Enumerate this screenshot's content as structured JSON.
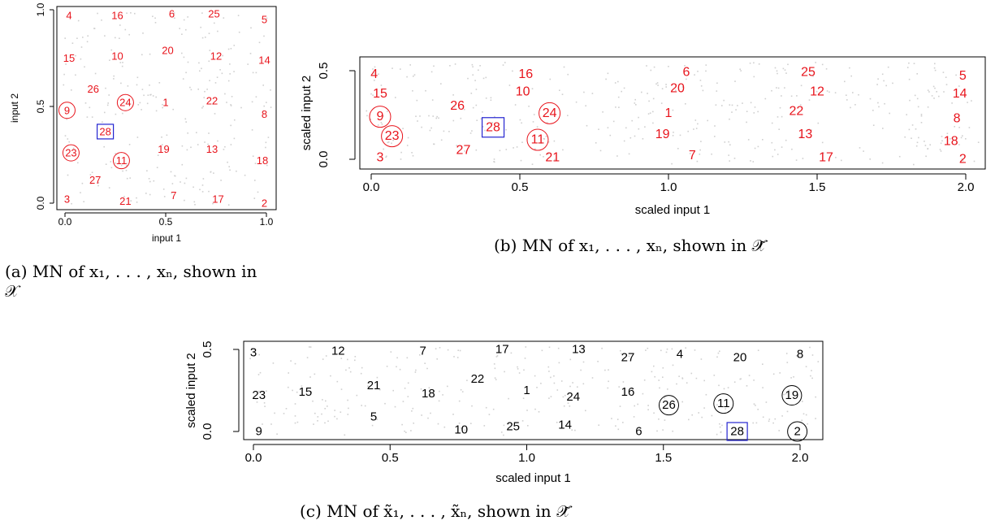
{
  "captions": {
    "a_line1": "(a) MN of x₁, . . . , xₙ, shown in",
    "a_line2": "𝒳",
    "b": "(b) MN of x₁, . . . , xₙ, shown in 𝒳̃",
    "c": "(c) MN of x̃₁, . . . , x̃ₙ, shown in 𝒳̃"
  },
  "colors": {
    "red": "#e8141c",
    "black": "#000000",
    "blue": "#2424d0",
    "grey_points": "#cfcfcf"
  },
  "chart_data": [
    {
      "id": "a",
      "type": "scatter",
      "xlabel": "input 1",
      "ylabel": "input 2",
      "xlim": [
        0,
        1
      ],
      "ylim": [
        0,
        1
      ],
      "xticks": [
        "0.0",
        "0.5",
        "1.0"
      ],
      "yticks": [
        "0.0",
        "0.5",
        "1.0"
      ],
      "label_color": "red",
      "points": [
        {
          "label": "4",
          "x": 0.02,
          "y": 0.97
        },
        {
          "label": "16",
          "x": 0.26,
          "y": 0.97
        },
        {
          "label": "6",
          "x": 0.53,
          "y": 0.98
        },
        {
          "label": "25",
          "x": 0.74,
          "y": 0.98
        },
        {
          "label": "5",
          "x": 0.99,
          "y": 0.95
        },
        {
          "label": "15",
          "x": 0.02,
          "y": 0.75
        },
        {
          "label": "10",
          "x": 0.26,
          "y": 0.76
        },
        {
          "label": "20",
          "x": 0.51,
          "y": 0.79
        },
        {
          "label": "12",
          "x": 0.75,
          "y": 0.76
        },
        {
          "label": "14",
          "x": 0.99,
          "y": 0.74
        },
        {
          "label": "26",
          "x": 0.14,
          "y": 0.59
        },
        {
          "label": "9",
          "x": 0.01,
          "y": 0.48,
          "circled": true
        },
        {
          "label": "24",
          "x": 0.3,
          "y": 0.52,
          "circled": true
        },
        {
          "label": "1",
          "x": 0.5,
          "y": 0.52
        },
        {
          "label": "22",
          "x": 0.73,
          "y": 0.53
        },
        {
          "label": "8",
          "x": 0.99,
          "y": 0.46
        },
        {
          "label": "28",
          "x": 0.2,
          "y": 0.37,
          "boxed": true
        },
        {
          "label": "23",
          "x": 0.03,
          "y": 0.26,
          "circled": true
        },
        {
          "label": "11",
          "x": 0.28,
          "y": 0.22,
          "circled": true
        },
        {
          "label": "19",
          "x": 0.49,
          "y": 0.28
        },
        {
          "label": "13",
          "x": 0.73,
          "y": 0.28
        },
        {
          "label": "18",
          "x": 0.98,
          "y": 0.22
        },
        {
          "label": "27",
          "x": 0.15,
          "y": 0.12
        },
        {
          "label": "3",
          "x": 0.01,
          "y": 0.02
        },
        {
          "label": "21",
          "x": 0.3,
          "y": 0.01
        },
        {
          "label": "7",
          "x": 0.54,
          "y": 0.04
        },
        {
          "label": "17",
          "x": 0.76,
          "y": 0.02
        },
        {
          "label": "2",
          "x": 0.99,
          "y": 0.0
        }
      ]
    },
    {
      "id": "b",
      "type": "scatter",
      "xlabel": "scaled input 1",
      "ylabel": "scaled input 2",
      "xlim": [
        0,
        2
      ],
      "ylim": [
        0,
        0.5
      ],
      "xticks": [
        "0.0",
        "0.5",
        "1.0",
        "1.5",
        "2.0"
      ],
      "yticks": [
        "0.0",
        "0.5"
      ],
      "label_color": "red",
      "points": [
        {
          "label": "4",
          "x": 0.01,
          "y": 0.48
        },
        {
          "label": "16",
          "x": 0.52,
          "y": 0.48
        },
        {
          "label": "6",
          "x": 1.06,
          "y": 0.49
        },
        {
          "label": "25",
          "x": 1.47,
          "y": 0.49
        },
        {
          "label": "5",
          "x": 1.99,
          "y": 0.47
        },
        {
          "label": "15",
          "x": 0.03,
          "y": 0.37
        },
        {
          "label": "10",
          "x": 0.51,
          "y": 0.38
        },
        {
          "label": "20",
          "x": 1.03,
          "y": 0.4
        },
        {
          "label": "12",
          "x": 1.5,
          "y": 0.38
        },
        {
          "label": "14",
          "x": 1.98,
          "y": 0.37
        },
        {
          "label": "26",
          "x": 0.29,
          "y": 0.3
        },
        {
          "label": "9",
          "x": 0.03,
          "y": 0.24,
          "circled": true
        },
        {
          "label": "24",
          "x": 0.6,
          "y": 0.26,
          "circled": true
        },
        {
          "label": "1",
          "x": 1.0,
          "y": 0.26
        },
        {
          "label": "22",
          "x": 1.43,
          "y": 0.27
        },
        {
          "label": "8",
          "x": 1.97,
          "y": 0.23
        },
        {
          "label": "28",
          "x": 0.41,
          "y": 0.18,
          "boxed": true
        },
        {
          "label": "23",
          "x": 0.07,
          "y": 0.13,
          "circled": true
        },
        {
          "label": "11",
          "x": 0.56,
          "y": 0.11,
          "circled": true
        },
        {
          "label": "19",
          "x": 0.98,
          "y": 0.14
        },
        {
          "label": "13",
          "x": 1.46,
          "y": 0.14
        },
        {
          "label": "18",
          "x": 1.95,
          "y": 0.1
        },
        {
          "label": "27",
          "x": 0.31,
          "y": 0.05
        },
        {
          "label": "3",
          "x": 0.03,
          "y": 0.01
        },
        {
          "label": "21",
          "x": 0.61,
          "y": 0.01
        },
        {
          "label": "7",
          "x": 1.08,
          "y": 0.02
        },
        {
          "label": "17",
          "x": 1.53,
          "y": 0.01
        },
        {
          "label": "2",
          "x": 1.99,
          "y": 0.0
        }
      ]
    },
    {
      "id": "c",
      "type": "scatter",
      "xlabel": "scaled input 1",
      "ylabel": "scaled input 2",
      "xlim": [
        0,
        2
      ],
      "ylim": [
        0,
        0.5
      ],
      "xticks": [
        "0.0",
        "0.5",
        "1.0",
        "1.5",
        "2.0"
      ],
      "yticks": [
        "0.0",
        "0.5"
      ],
      "label_color": "black",
      "points": [
        {
          "label": "3",
          "x": 0.0,
          "y": 0.48
        },
        {
          "label": "12",
          "x": 0.31,
          "y": 0.49
        },
        {
          "label": "7",
          "x": 0.62,
          "y": 0.49
        },
        {
          "label": "17",
          "x": 0.91,
          "y": 0.5
        },
        {
          "label": "13",
          "x": 1.19,
          "y": 0.5
        },
        {
          "label": "27",
          "x": 1.37,
          "y": 0.45
        },
        {
          "label": "4",
          "x": 1.56,
          "y": 0.47
        },
        {
          "label": "20",
          "x": 1.78,
          "y": 0.45
        },
        {
          "label": "8",
          "x": 2.0,
          "y": 0.47
        },
        {
          "label": "23",
          "x": 0.02,
          "y": 0.22
        },
        {
          "label": "15",
          "x": 0.19,
          "y": 0.24
        },
        {
          "label": "21",
          "x": 0.44,
          "y": 0.28
        },
        {
          "label": "18",
          "x": 0.64,
          "y": 0.23
        },
        {
          "label": "22",
          "x": 0.82,
          "y": 0.32
        },
        {
          "label": "1",
          "x": 1.0,
          "y": 0.25
        },
        {
          "label": "24",
          "x": 1.17,
          "y": 0.21
        },
        {
          "label": "16",
          "x": 1.37,
          "y": 0.24
        },
        {
          "label": "26",
          "x": 1.52,
          "y": 0.16,
          "circled": true
        },
        {
          "label": "11",
          "x": 1.72,
          "y": 0.17,
          "circled": true
        },
        {
          "label": "19",
          "x": 1.97,
          "y": 0.22,
          "circled": true
        },
        {
          "label": "9",
          "x": 0.02,
          "y": 0.0
        },
        {
          "label": "5",
          "x": 0.44,
          "y": 0.09
        },
        {
          "label": "10",
          "x": 0.76,
          "y": 0.01
        },
        {
          "label": "25",
          "x": 0.95,
          "y": 0.03
        },
        {
          "label": "14",
          "x": 1.14,
          "y": 0.04
        },
        {
          "label": "6",
          "x": 1.41,
          "y": 0.0
        },
        {
          "label": "28",
          "x": 1.77,
          "y": 0.0,
          "boxed": true
        },
        {
          "label": "2",
          "x": 1.99,
          "y": 0.0,
          "circled": true
        }
      ]
    }
  ]
}
